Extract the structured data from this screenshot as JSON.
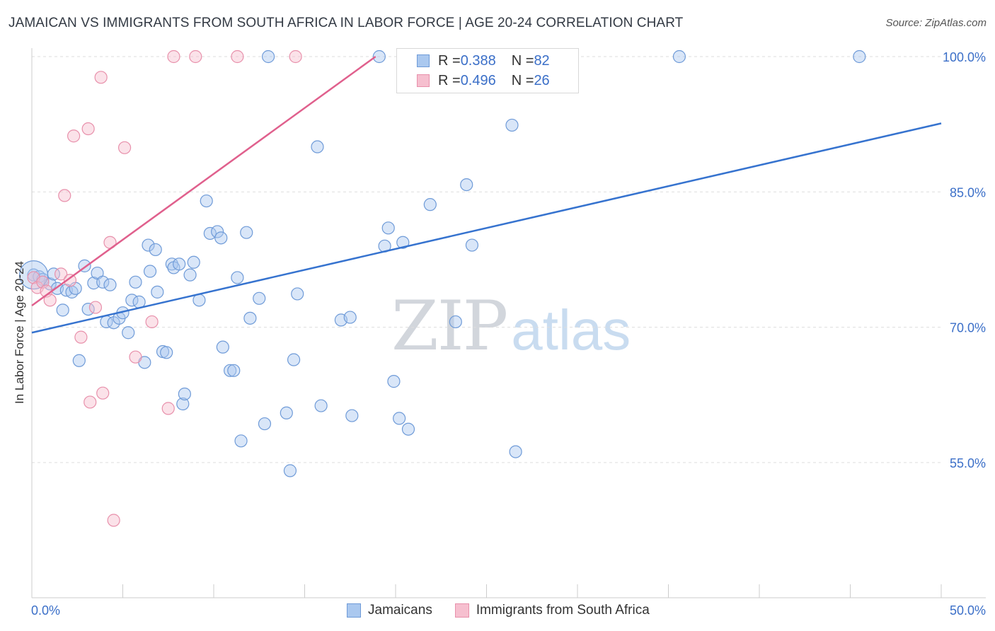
{
  "header": {
    "title": "JAMAICAN VS IMMIGRANTS FROM SOUTH AFRICA IN LABOR FORCE | AGE 20-24 CORRELATION CHART",
    "source": "Source: ZipAtlas.com"
  },
  "watermark": {
    "zip": "ZIP",
    "atlas": "atlas"
  },
  "legend_top": {
    "rows": [
      {
        "r_label": "R = ",
        "r_value": "0.388",
        "n_label": "N = ",
        "n_value": "82"
      },
      {
        "r_label": "R = ",
        "r_value": "0.496",
        "n_label": "N = ",
        "n_value": "26"
      }
    ]
  },
  "colors": {
    "blue_fill": "#aac8ef",
    "blue_stroke": "#6f9bd8",
    "blue_line": "#3673cf",
    "pink_fill": "#f6bfcf",
    "pink_stroke": "#e890ab",
    "pink_line": "#e0608d",
    "tick_label": "#3b6fc8",
    "grid": "#dddddd",
    "axis": "#cccccc"
  },
  "chart_data": {
    "type": "scatter",
    "title": "JAMAICAN VS IMMIGRANTS FROM SOUTH AFRICA IN LABOR FORCE | AGE 20-24 CORRELATION CHART",
    "xlabel": "",
    "ylabel": "In Labor Force | Age 20-24",
    "xlim": [
      0,
      50
    ],
    "ylim": [
      40,
      101.5
    ],
    "x_tick_labels": [
      "0.0%",
      "50.0%"
    ],
    "y_ticks": [
      55,
      70,
      85,
      100
    ],
    "y_tick_labels": [
      "55.0%",
      "70.0%",
      "85.0%",
      "100.0%"
    ],
    "grid": true,
    "legend_position": "bottom",
    "series": [
      {
        "name": "Jamaicans",
        "color": "#6f9bd8",
        "r": 0.388,
        "n": 82,
        "trend": {
          "x": [
            0,
            50
          ],
          "y": [
            69.4,
            92.6
          ]
        },
        "points": [
          [
            0.1,
            75.8
          ],
          [
            0.4,
            75.6
          ],
          [
            0.6,
            75.3
          ],
          [
            1.0,
            74.8
          ],
          [
            1.2,
            75.9
          ],
          [
            1.4,
            74.3
          ],
          [
            1.7,
            71.9
          ],
          [
            1.9,
            74.1
          ],
          [
            2.2,
            73.9
          ],
          [
            2.4,
            74.3
          ],
          [
            2.6,
            66.3
          ],
          [
            2.9,
            76.8
          ],
          [
            3.1,
            72.0
          ],
          [
            3.4,
            74.9
          ],
          [
            3.6,
            76.0
          ],
          [
            3.9,
            75.0
          ],
          [
            4.1,
            70.6
          ],
          [
            4.3,
            74.7
          ],
          [
            4.5,
            70.5
          ],
          [
            4.8,
            71.0
          ],
          [
            5.0,
            71.6
          ],
          [
            5.3,
            69.4
          ],
          [
            5.5,
            73.0
          ],
          [
            5.7,
            75.0
          ],
          [
            5.9,
            72.8
          ],
          [
            6.2,
            66.1
          ],
          [
            6.4,
            79.1
          ],
          [
            6.5,
            76.2
          ],
          [
            6.8,
            78.6
          ],
          [
            6.9,
            73.9
          ],
          [
            7.2,
            67.3
          ],
          [
            7.4,
            67.2
          ],
          [
            7.7,
            77.0
          ],
          [
            7.8,
            76.6
          ],
          [
            8.1,
            77.0
          ],
          [
            8.3,
            61.5
          ],
          [
            8.4,
            62.6
          ],
          [
            8.7,
            75.8
          ],
          [
            8.9,
            77.2
          ],
          [
            9.2,
            73.0
          ],
          [
            9.6,
            84.0
          ],
          [
            9.8,
            80.4
          ],
          [
            10.2,
            80.6
          ],
          [
            10.4,
            79.9
          ],
          [
            10.5,
            67.8
          ],
          [
            10.9,
            65.2
          ],
          [
            11.1,
            65.2
          ],
          [
            11.3,
            75.5
          ],
          [
            11.5,
            57.4
          ],
          [
            11.8,
            80.5
          ],
          [
            12.0,
            71.0
          ],
          [
            12.5,
            73.2
          ],
          [
            12.8,
            59.3
          ],
          [
            13.0,
            100.0
          ],
          [
            14.0,
            60.5
          ],
          [
            14.2,
            54.1
          ],
          [
            14.4,
            66.4
          ],
          [
            14.6,
            73.7
          ],
          [
            15.9,
            61.3
          ],
          [
            15.7,
            90.0
          ],
          [
            17.0,
            70.8
          ],
          [
            17.5,
            71.1
          ],
          [
            17.6,
            60.2
          ],
          [
            19.1,
            100.0
          ],
          [
            19.4,
            79.0
          ],
          [
            19.6,
            81.0
          ],
          [
            19.9,
            64.0
          ],
          [
            20.2,
            59.9
          ],
          [
            20.4,
            79.4
          ],
          [
            20.7,
            58.7
          ],
          [
            21.9,
            83.6
          ],
          [
            23.3,
            70.6
          ],
          [
            23.9,
            85.8
          ],
          [
            24.2,
            79.1
          ],
          [
            26.4,
            92.4
          ],
          [
            26.6,
            56.2
          ],
          [
            27.8,
            100.0
          ],
          [
            35.6,
            100.0
          ],
          [
            45.5,
            100.0
          ]
        ]
      },
      {
        "name": "Immigrants from South Africa",
        "color": "#e890ab",
        "r": 0.496,
        "n": 26,
        "trend": {
          "x": [
            0,
            18.9
          ],
          "y": [
            72.4,
            100.0
          ]
        },
        "points": [
          [
            0.1,
            75.5
          ],
          [
            0.3,
            74.4
          ],
          [
            0.6,
            75.0
          ],
          [
            0.8,
            74.0
          ],
          [
            1.0,
            73.0
          ],
          [
            1.6,
            75.9
          ],
          [
            2.1,
            75.2
          ],
          [
            2.3,
            91.2
          ],
          [
            2.7,
            68.9
          ],
          [
            3.1,
            92.0
          ],
          [
            3.2,
            61.7
          ],
          [
            3.5,
            72.2
          ],
          [
            3.8,
            97.7
          ],
          [
            3.9,
            62.7
          ],
          [
            4.3,
            79.4
          ],
          [
            4.5,
            48.6
          ],
          [
            5.1,
            89.9
          ],
          [
            5.7,
            66.7
          ],
          [
            6.6,
            70.6
          ],
          [
            7.5,
            61.0
          ],
          [
            7.8,
            100.0
          ],
          [
            9.0,
            100.0
          ],
          [
            11.3,
            100.0
          ],
          [
            14.5,
            100.0
          ],
          [
            1.8,
            84.6
          ]
        ]
      }
    ]
  },
  "legend_bottom": {
    "items": [
      {
        "label": "Jamaicans"
      },
      {
        "label": "Immigrants from South Africa"
      }
    ]
  }
}
